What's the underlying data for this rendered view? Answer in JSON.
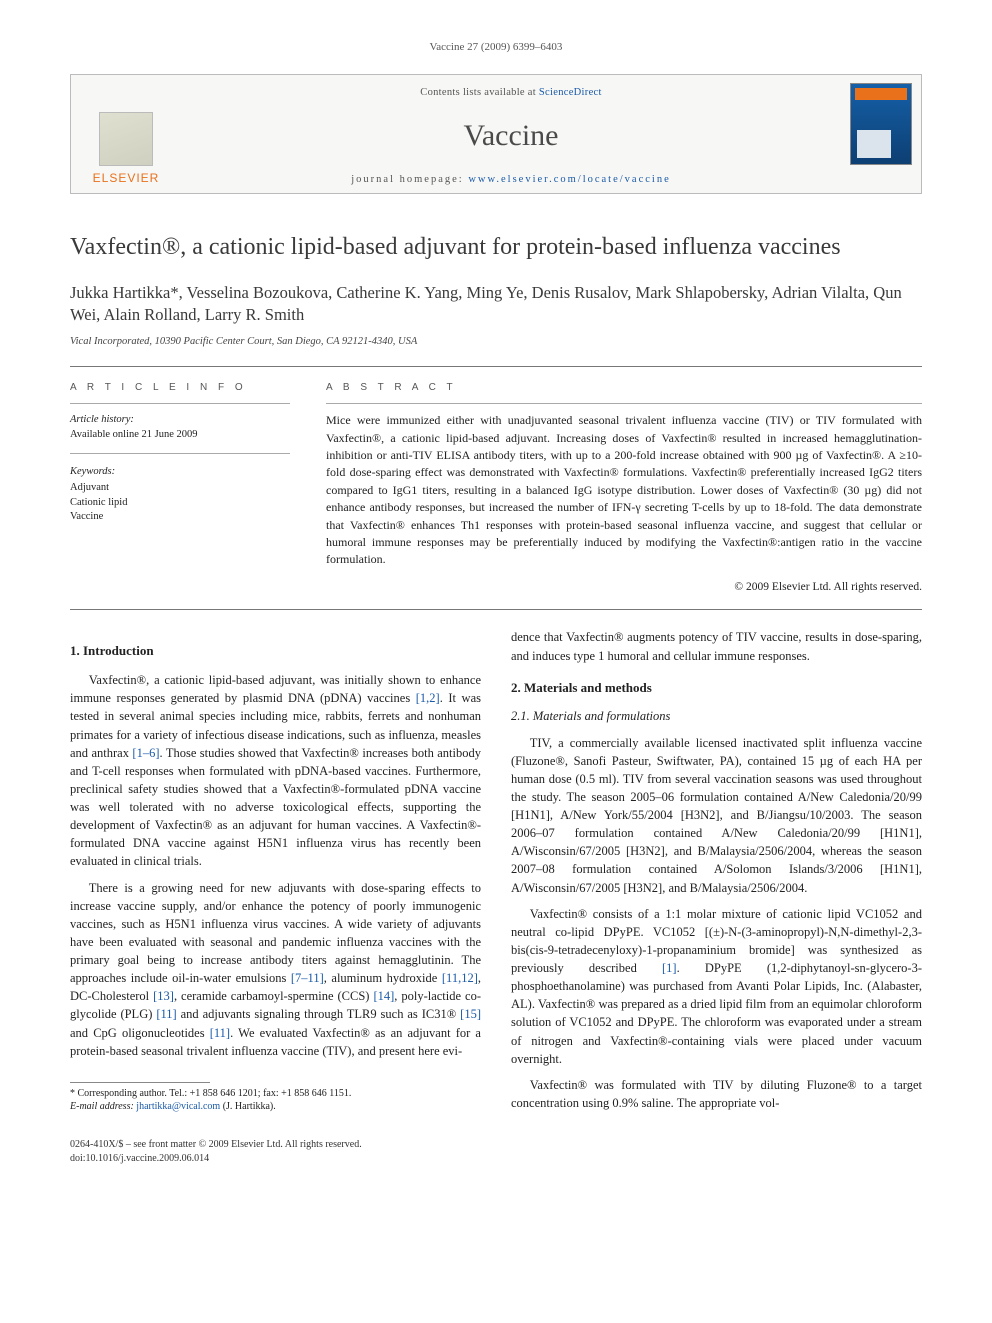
{
  "header_line": "Vaccine 27 (2009) 6399–6403",
  "banner": {
    "contents_line_pre": "Contents lists available at ",
    "contents_link": "ScienceDirect",
    "journal_name": "Vaccine",
    "homepage_pre": "journal homepage: ",
    "homepage_link": "www.elsevier.com/locate/vaccine",
    "publisher": "ELSEVIER"
  },
  "title": "Vaxfectin®, a cationic lipid-based adjuvant for protein-based influenza vaccines",
  "authors": "Jukka Hartikka*, Vesselina Bozoukova, Catherine K. Yang, Ming Ye, Denis Rusalov, Mark Shlapobersky, Adrian Vilalta, Qun Wei, Alain Rolland, Larry R. Smith",
  "affiliation": "Vical Incorporated, 10390 Pacific Center Court, San Diego, CA 92121-4340, USA",
  "info": {
    "heading": "A R T I C L E   I N F O",
    "history_label": "Article history:",
    "history_value": "Available online 21 June 2009",
    "keywords_label": "Keywords:",
    "keywords": [
      "Adjuvant",
      "Cationic lipid",
      "Vaccine"
    ]
  },
  "abstract": {
    "heading": "A B S T R A C T",
    "text": "Mice were immunized either with unadjuvanted seasonal trivalent influenza vaccine (TIV) or TIV formulated with Vaxfectin®, a cationic lipid-based adjuvant. Increasing doses of Vaxfectin® resulted in increased hemagglutination-inhibition or anti-TIV ELISA antibody titers, with up to a 200-fold increase obtained with 900 µg of Vaxfectin®. A ≥10-fold dose-sparing effect was demonstrated with Vaxfectin® formulations. Vaxfectin® preferentially increased IgG2 titers compared to IgG1 titers, resulting in a balanced IgG isotype distribution. Lower doses of Vaxfectin® (30 µg) did not enhance antibody responses, but increased the number of IFN-γ secreting T-cells by up to 18-fold. The data demonstrate that Vaxfectin® enhances Th1 responses with protein-based seasonal influenza vaccine, and suggest that cellular or humoral immune responses may be preferentially induced by modifying the Vaxfectin®:antigen ratio in the vaccine formulation.",
    "copyright": "© 2009 Elsevier Ltd. All rights reserved."
  },
  "sections": {
    "s1_title": "1.  Introduction",
    "s1_p1": "Vaxfectin®, a cationic lipid-based adjuvant, was initially shown to enhance immune responses generated by plasmid DNA (pDNA) vaccines [1,2]. It was tested in several animal species including mice, rabbits, ferrets and nonhuman primates for a variety of infectious disease indications, such as influenza, measles and anthrax [1–6]. Those studies showed that Vaxfectin® increases both antibody and T-cell responses when formulated with pDNA-based vaccines. Furthermore, preclinical safety studies showed that a Vaxfectin®-formulated pDNA vaccine was well tolerated with no adverse toxicological effects, supporting the development of Vaxfectin® as an adjuvant for human vaccines. A Vaxfectin®-formulated DNA vaccine against H5N1 influenza virus has recently been evaluated in clinical trials.",
    "s1_p2": "There is a growing need for new adjuvants with dose-sparing effects to increase vaccine supply, and/or enhance the potency of poorly immunogenic vaccines, such as H5N1 influenza virus vaccines. A wide variety of adjuvants have been evaluated with seasonal and pandemic influenza vaccines with the primary goal being to increase antibody titers against hemagglutinin. The approaches include oil-in-water emulsions [7–11], aluminum hydroxide [11,12], DC-Cholesterol [13], ceramide carbamoyl-spermine (CCS) [14], poly-lactide co-glycolide (PLG) [11] and adjuvants signaling through TLR9 such as IC31® [15] and CpG oligonucleotides [11]. We evaluated Vaxfectin® as an adjuvant for a protein-based seasonal trivalent influenza vaccine (TIV), and present here evi-",
    "s1_p2b": "dence that Vaxfectin® augments potency of TIV vaccine, results in dose-sparing, and induces type 1 humoral and cellular immune responses.",
    "s2_title": "2.  Materials and methods",
    "s21_title": "2.1.  Materials and formulations",
    "s21_p1": "TIV, a commercially available licensed inactivated split influenza vaccine (Fluzone®, Sanofi Pasteur, Swiftwater, PA), contained 15 µg of each HA per human dose (0.5 ml). TIV from several vaccination seasons was used throughout the study. The season 2005–06 formulation contained A/New Caledonia/20/99 [H1N1], A/New York/55/2004 [H3N2], and B/Jiangsu/10/2003. The season 2006–07 formulation contained A/New Caledonia/20/99 [H1N1], A/Wisconsin/67/2005 [H3N2], and B/Malaysia/2506/2004, whereas the season 2007–08 formulation contained A/Solomon Islands/3/2006 [H1N1], A/Wisconsin/67/2005 [H3N2], and B/Malaysia/2506/2004.",
    "s21_p2": "Vaxfectin® consists of a 1:1 molar mixture of cationic lipid VC1052 and neutral co-lipid DPyPE. VC1052 [(±)-N-(3-aminopropyl)-N,N-dimethyl-2,3-bis(cis-9-tetradecenyloxy)-1-propanaminium bromide] was synthesized as previously described [1]. DPyPE (1,2-diphytanoyl-sn-glycero-3-phosphoethanolamine) was purchased from Avanti Polar Lipids, Inc. (Alabaster, AL). Vaxfectin® was prepared as a dried lipid film from an equimolar chloroform solution of VC1052 and DPyPE. The chloroform was evaporated under a stream of nitrogen and Vaxfectin®-containing vials were placed under vacuum overnight.",
    "s21_p3": "Vaxfectin® was formulated with TIV by diluting Fluzone® to a target concentration using 0.9% saline. The appropriate vol-"
  },
  "footnote": {
    "corr": "* Corresponding author. Tel.: +1 858 646 1201; fax: +1 858 646 1151.",
    "email_label": "E-mail address: ",
    "email": "jhartikka@vical.com",
    "email_tail": " (J. Hartikka)."
  },
  "bottom": {
    "line1": "0264-410X/$ – see front matter © 2009 Elsevier Ltd. All rights reserved.",
    "line2": "doi:10.1016/j.vaccine.2009.06.014"
  },
  "colors": {
    "link": "#1a5aa8",
    "orange": "#e9711c",
    "text": "#222222",
    "rule": "#777777",
    "banner_bg": "#f7f7f5"
  }
}
